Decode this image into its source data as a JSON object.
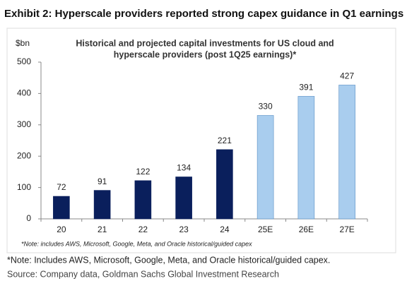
{
  "chart_data": {
    "type": "bar",
    "heading": "Exhibit 2: Hyperscale providers reported strong capex guidance in Q1 earnings",
    "title_lines": [
      "Historical and projected capital investments for US cloud and",
      "hyperscale providers (post 1Q25 earnings)*"
    ],
    "y_label": "$bn",
    "categories": [
      "20",
      "21",
      "22",
      "23",
      "24",
      "25E",
      "26E",
      "27E"
    ],
    "values": [
      72,
      91,
      122,
      134,
      221,
      330,
      391,
      427
    ],
    "colors": [
      "#0a1f5c",
      "#0a1f5c",
      "#0a1f5c",
      "#0a1f5c",
      "#0a1f5c",
      "#a9cdee",
      "#a9cdee",
      "#a9cdee"
    ],
    "ylim": [
      0,
      500
    ],
    "yticks": [
      0,
      100,
      200,
      300,
      400,
      500
    ],
    "grid": false,
    "chart_note": "*Note: includes AWS, Microsoft, Google, Meta, and Oracle historical/guided capex",
    "note": "*Note: Includes AWS, Microsoft, Google, Meta, and Oracle historical/guided capex.",
    "source": "Source: Company data, Goldman Sachs Global Investment Research"
  }
}
